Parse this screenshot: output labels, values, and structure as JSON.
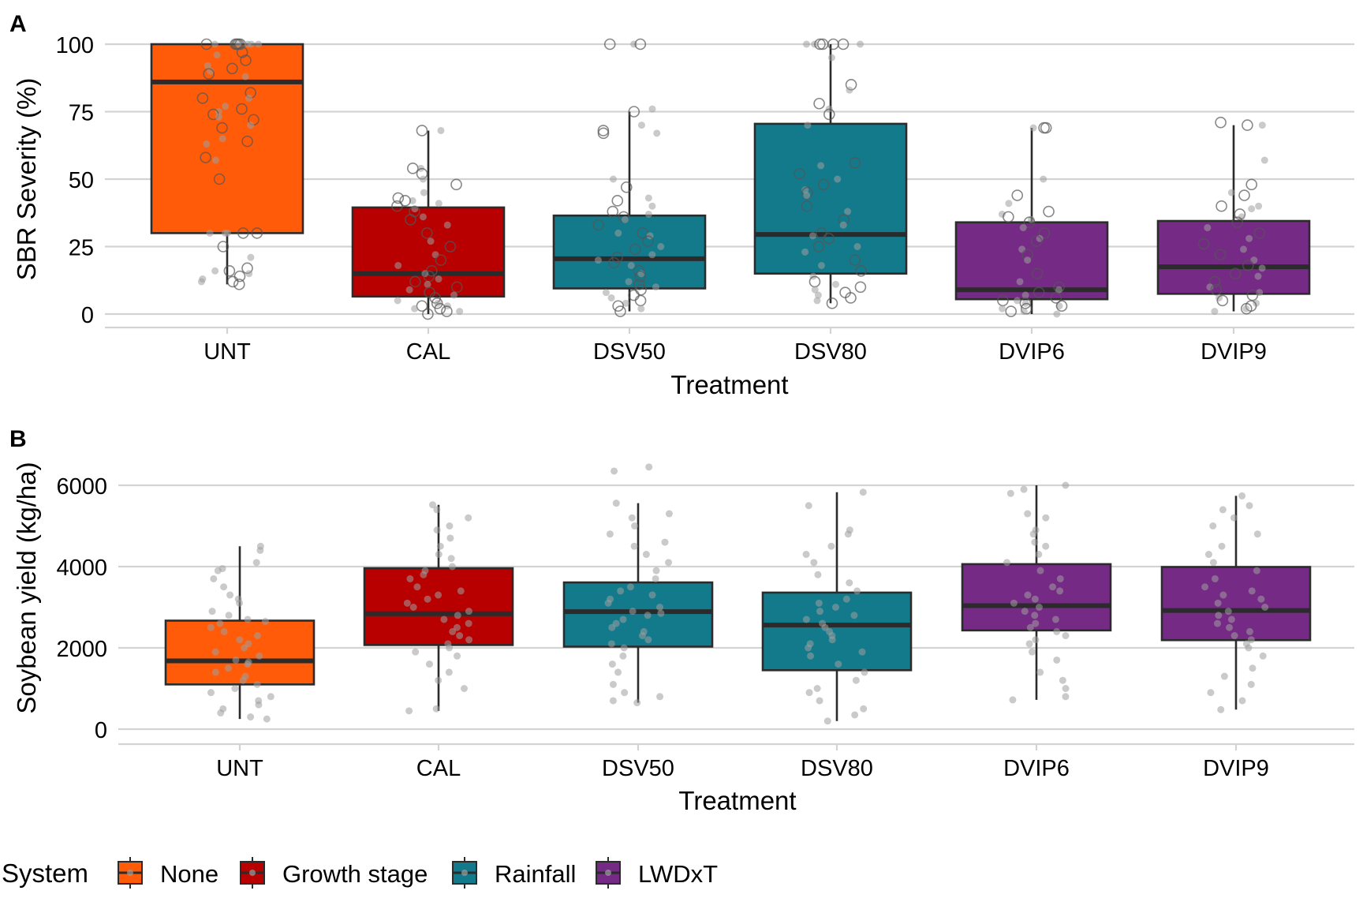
{
  "colors": {
    "None": "#FF5B08",
    "Growth stage": "#B80000",
    "Rainfall": "#137A8C",
    "LWDxT": "#752A85",
    "grid": "#D3D3D3",
    "box_line": "#2B2B2B",
    "point": "#9E9E9E"
  },
  "legend": {
    "title": "System",
    "items": [
      "None",
      "Growth stage",
      "Rainfall",
      "LWDxT"
    ],
    "position": "bottom-left"
  },
  "chart_data": [
    {
      "panel_label": "A",
      "type": "box",
      "title": "",
      "xlabel": "Treatment",
      "ylabel": "SBR Severity (%)",
      "categories": [
        "UNT",
        "CAL",
        "DSV50",
        "DSV80",
        "DVIP6",
        "DVIP9"
      ],
      "systems": [
        "None",
        "Growth stage",
        "Rainfall",
        "Rainfall",
        "LWDxT",
        "LWDxT"
      ],
      "yticks": [
        0,
        25,
        50,
        75,
        100
      ],
      "ylim": [
        -5,
        100
      ],
      "grid": true,
      "boxes": [
        {
          "category": "UNT",
          "q1": 30,
          "median": 86,
          "q3": 100,
          "whisker_low": 11,
          "whisker_high": 100
        },
        {
          "category": "CAL",
          "q1": 6.5,
          "median": 15,
          "q3": 39.5,
          "whisker_low": 0,
          "whisker_high": 68
        },
        {
          "category": "DSV50",
          "q1": 9.5,
          "median": 20.5,
          "q3": 36.5,
          "whisker_low": 1,
          "whisker_high": 75
        },
        {
          "category": "DSV80",
          "q1": 15,
          "median": 29.5,
          "q3": 70.5,
          "whisker_low": 4,
          "whisker_high": 100
        },
        {
          "category": "DVIP6",
          "q1": 5.5,
          "median": 9,
          "q3": 34,
          "whisker_low": 0,
          "whisker_high": 69
        },
        {
          "category": "DVIP9",
          "q1": 7.5,
          "median": 17.5,
          "q3": 34.5,
          "whisker_low": 1,
          "whisker_high": 70
        }
      ],
      "points": [
        {
          "category": "UNT",
          "values": [
            100,
            100,
            100,
            100,
            100,
            100,
            100,
            100,
            100,
            100,
            97,
            96,
            94,
            92,
            91,
            90,
            89,
            88,
            82,
            80,
            80,
            77,
            76,
            75,
            74,
            73,
            72,
            70,
            69,
            65,
            64,
            63,
            58,
            57,
            50,
            30,
            30,
            30,
            30,
            30,
            25,
            21,
            17,
            16,
            16,
            15,
            14,
            13,
            12,
            12,
            11
          ]
        },
        {
          "category": "CAL",
          "values": [
            68,
            68,
            54,
            54,
            52,
            50,
            48,
            45,
            43,
            42,
            42,
            41,
            40,
            39,
            38,
            36,
            35,
            33,
            30,
            27,
            25,
            22,
            20,
            18,
            16,
            15,
            14,
            13,
            12,
            11,
            10,
            9,
            8,
            7,
            6,
            5,
            4,
            4,
            3,
            3,
            2,
            2,
            1,
            1,
            0
          ]
        },
        {
          "category": "DSV50",
          "values": [
            100,
            100,
            100,
            76,
            75,
            70,
            68,
            67,
            67,
            50,
            47,
            43,
            42,
            40,
            38,
            37,
            36,
            35,
            33,
            30,
            30,
            29,
            27,
            25,
            24,
            22,
            21,
            20,
            19,
            18,
            16,
            15,
            14,
            12,
            11,
            10,
            9,
            8,
            7,
            6,
            5,
            4,
            3,
            2,
            1
          ]
        },
        {
          "category": "DSV80",
          "values": [
            100,
            100,
            100,
            100,
            100,
            100,
            100,
            95,
            85,
            83,
            78,
            76,
            74,
            70,
            56,
            55,
            52,
            50,
            48,
            46,
            45,
            44,
            40,
            38,
            35,
            33,
            30,
            29,
            28,
            25,
            25,
            23,
            20,
            18,
            16,
            14,
            12,
            11,
            10,
            9,
            8,
            7,
            6,
            5,
            4
          ]
        },
        {
          "category": "DVIP6",
          "values": [
            69,
            69,
            69,
            50,
            44,
            41,
            38,
            37,
            36,
            35,
            34,
            32,
            30,
            28,
            27,
            24,
            22,
            20,
            15,
            12,
            10,
            9,
            8,
            7,
            6,
            5,
            5,
            4,
            4,
            3,
            3,
            2,
            2,
            1,
            1,
            0
          ]
        },
        {
          "category": "DVIP9",
          "values": [
            71,
            70,
            70,
            57,
            48,
            45,
            44,
            40,
            40,
            39,
            37,
            36,
            34,
            32,
            30,
            28,
            26,
            24,
            22,
            20,
            18,
            17,
            15,
            14,
            12,
            10,
            9,
            8,
            7,
            6,
            5,
            4,
            3,
            2,
            2,
            1
          ]
        }
      ]
    },
    {
      "panel_label": "B",
      "type": "box",
      "title": "",
      "xlabel": "Treatment",
      "ylabel": "Soybean yield (kg/ha)",
      "categories": [
        "UNT",
        "CAL",
        "DSV50",
        "DSV80",
        "DVIP6",
        "DVIP9"
      ],
      "systems": [
        "None",
        "Growth stage",
        "Rainfall",
        "Rainfall",
        "LWDxT",
        "LWDxT"
      ],
      "yticks": [
        0,
        2000,
        4000,
        6000
      ],
      "ylim": [
        -300,
        6600
      ],
      "grid": true,
      "boxes": [
        {
          "category": "UNT",
          "q1": 1100,
          "median": 1680,
          "q3": 2670,
          "whisker_low": 250,
          "whisker_high": 4500
        },
        {
          "category": "CAL",
          "q1": 2070,
          "median": 2840,
          "q3": 3960,
          "whisker_low": 450,
          "whisker_high": 5520
        },
        {
          "category": "DSV50",
          "q1": 2030,
          "median": 2890,
          "q3": 3610,
          "whisker_low": 650,
          "whisker_high": 5560
        },
        {
          "category": "DSV80",
          "q1": 1450,
          "median": 2560,
          "q3": 3360,
          "whisker_low": 200,
          "whisker_high": 5830
        },
        {
          "category": "DVIP6",
          "q1": 2430,
          "median": 3040,
          "q3": 4060,
          "whisker_low": 720,
          "whisker_high": 6000
        },
        {
          "category": "DVIP9",
          "q1": 2190,
          "median": 2920,
          "q3": 3990,
          "whisker_low": 480,
          "whisker_high": 5740
        }
      ],
      "points": [
        {
          "category": "UNT",
          "values": [
            4500,
            4400,
            4100,
            3950,
            3900,
            3700,
            3500,
            3300,
            3200,
            3100,
            2900,
            2800,
            2700,
            2650,
            2600,
            2500,
            2400,
            2300,
            2200,
            2100,
            2000,
            1900,
            1800,
            1700,
            1650,
            1600,
            1500,
            1400,
            1300,
            1200,
            1100,
            1000,
            900,
            800,
            700,
            600,
            500,
            400,
            300,
            250
          ]
        },
        {
          "category": "CAL",
          "values": [
            5520,
            5400,
            5200,
            5000,
            4900,
            4700,
            4500,
            4300,
            4200,
            4000,
            3900,
            3800,
            3700,
            3500,
            3400,
            3300,
            3200,
            3100,
            3000,
            2900,
            2800,
            2700,
            2600,
            2500,
            2400,
            2300,
            2200,
            2100,
            2000,
            1900,
            1800,
            1600,
            1400,
            1200,
            1000,
            500,
            450
          ]
        },
        {
          "category": "DSV50",
          "values": [
            6450,
            6350,
            5560,
            5300,
            5200,
            5000,
            4800,
            4600,
            4500,
            4300,
            4100,
            3900,
            3700,
            3500,
            3400,
            3300,
            3200,
            3100,
            3000,
            2900,
            2850,
            2800,
            2700,
            2600,
            2500,
            2400,
            2300,
            2200,
            2100,
            2000,
            1800,
            1600,
            1400,
            1100,
            900,
            800,
            700,
            650
          ]
        },
        {
          "category": "DSV80",
          "values": [
            5830,
            5500,
            4900,
            4800,
            4500,
            4300,
            4100,
            3800,
            3600,
            3400,
            3200,
            3100,
            3000,
            2900,
            2800,
            2700,
            2600,
            2500,
            2400,
            2300,
            2200,
            2100,
            2000,
            1900,
            1800,
            1600,
            1400,
            1200,
            1000,
            900,
            700,
            500,
            350,
            200
          ]
        },
        {
          "category": "DVIP6",
          "values": [
            6000,
            5900,
            5800,
            5300,
            5200,
            4900,
            4800,
            4600,
            4500,
            4300,
            4100,
            3900,
            3700,
            3500,
            3400,
            3300,
            3200,
            3100,
            3000,
            2900,
            2800,
            2700,
            2600,
            2500,
            2400,
            2300,
            2200,
            2100,
            1900,
            1700,
            1400,
            1200,
            1000,
            800,
            720
          ]
        },
        {
          "category": "DVIP9",
          "values": [
            5740,
            5500,
            5400,
            5200,
            5000,
            4800,
            4500,
            4300,
            4100,
            3900,
            3700,
            3500,
            3400,
            3300,
            3200,
            3100,
            3000,
            2900,
            2800,
            2700,
            2600,
            2500,
            2400,
            2300,
            2200,
            2100,
            2000,
            1800,
            1500,
            1300,
            1100,
            900,
            700,
            480
          ]
        }
      ]
    }
  ]
}
